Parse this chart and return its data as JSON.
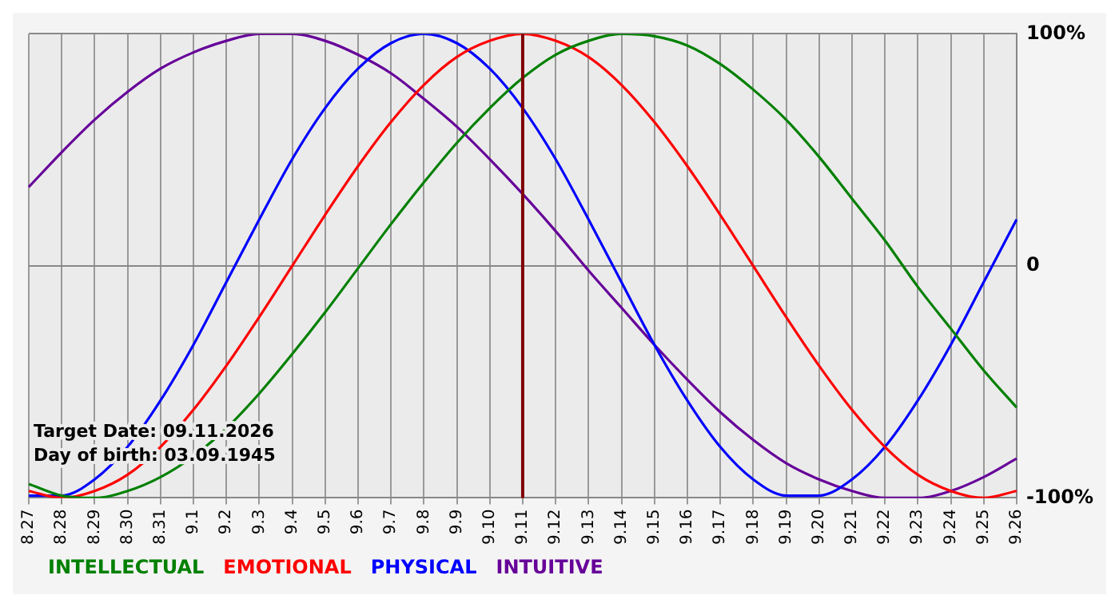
{
  "chart_data": {
    "type": "line",
    "categories": [
      "8.27",
      "8.28",
      "8.29",
      "8.30",
      "8.31",
      "9.1",
      "9.2",
      "9.3",
      "9.4",
      "9.5",
      "9.6",
      "9.7",
      "9.8",
      "9.9",
      "9.10",
      "9.11",
      "9.12",
      "9.13",
      "9.14",
      "9.15",
      "9.16",
      "9.17",
      "9.18",
      "9.19",
      "9.20",
      "9.21",
      "9.22",
      "9.23",
      "9.24",
      "9.25",
      "9.26"
    ],
    "series": [
      {
        "name": "INTELLECTUAL",
        "color": "#008000",
        "values": [
          -94,
          -99,
          -100,
          -97,
          -91,
          -82,
          -70,
          -55,
          -38,
          -20,
          -1,
          18,
          36,
          53,
          68,
          81,
          91,
          97,
          100,
          99,
          95,
          87,
          76,
          63,
          47,
          29,
          11,
          -9,
          -27,
          -45,
          -61
        ]
      },
      {
        "name": "EMOTIONAL",
        "color": "#ff0000",
        "values": [
          -97,
          -100,
          -97,
          -90,
          -78,
          -62,
          -43,
          -22,
          0,
          22,
          43,
          62,
          78,
          90,
          97,
          100,
          97,
          90,
          78,
          62,
          43,
          22,
          0,
          -22,
          -43,
          -62,
          -78,
          -90,
          -97,
          -100,
          -97
        ]
      },
      {
        "name": "PHYSICAL",
        "color": "#0000ff",
        "values": [
          -99,
          -99,
          -92,
          -78,
          -58,
          -34,
          -7,
          20,
          46,
          68,
          85,
          96,
          100,
          96,
          85,
          68,
          46,
          20,
          -7,
          -34,
          -58,
          -78,
          -92,
          -99,
          -99,
          -92,
          -78,
          -58,
          -34,
          -7,
          20
        ]
      },
      {
        "name": "INTUITIVE",
        "color": "#660099",
        "values": [
          34,
          49,
          63,
          75,
          85,
          92,
          97,
          100,
          100,
          97,
          91,
          83,
          72,
          60,
          46,
          31,
          15,
          -2,
          -18,
          -34,
          -49,
          -63,
          -75,
          -85,
          -92,
          -97,
          -100,
          -100,
          -97,
          -91,
          -83
        ]
      }
    ],
    "ylim": [
      -100,
      100
    ],
    "yticks": [
      {
        "value": 100,
        "label": "100%"
      },
      0,
      {
        "value": -100,
        "label": "-100%"
      }
    ],
    "grid": true,
    "legend": "bottom",
    "ref_lines": [
      {
        "axis": "x",
        "value": "9.11",
        "color": "#800000"
      }
    ],
    "annotations": [
      "Target Date: 09.11.2026",
      "Day of birth: 03.09.1945"
    ]
  }
}
